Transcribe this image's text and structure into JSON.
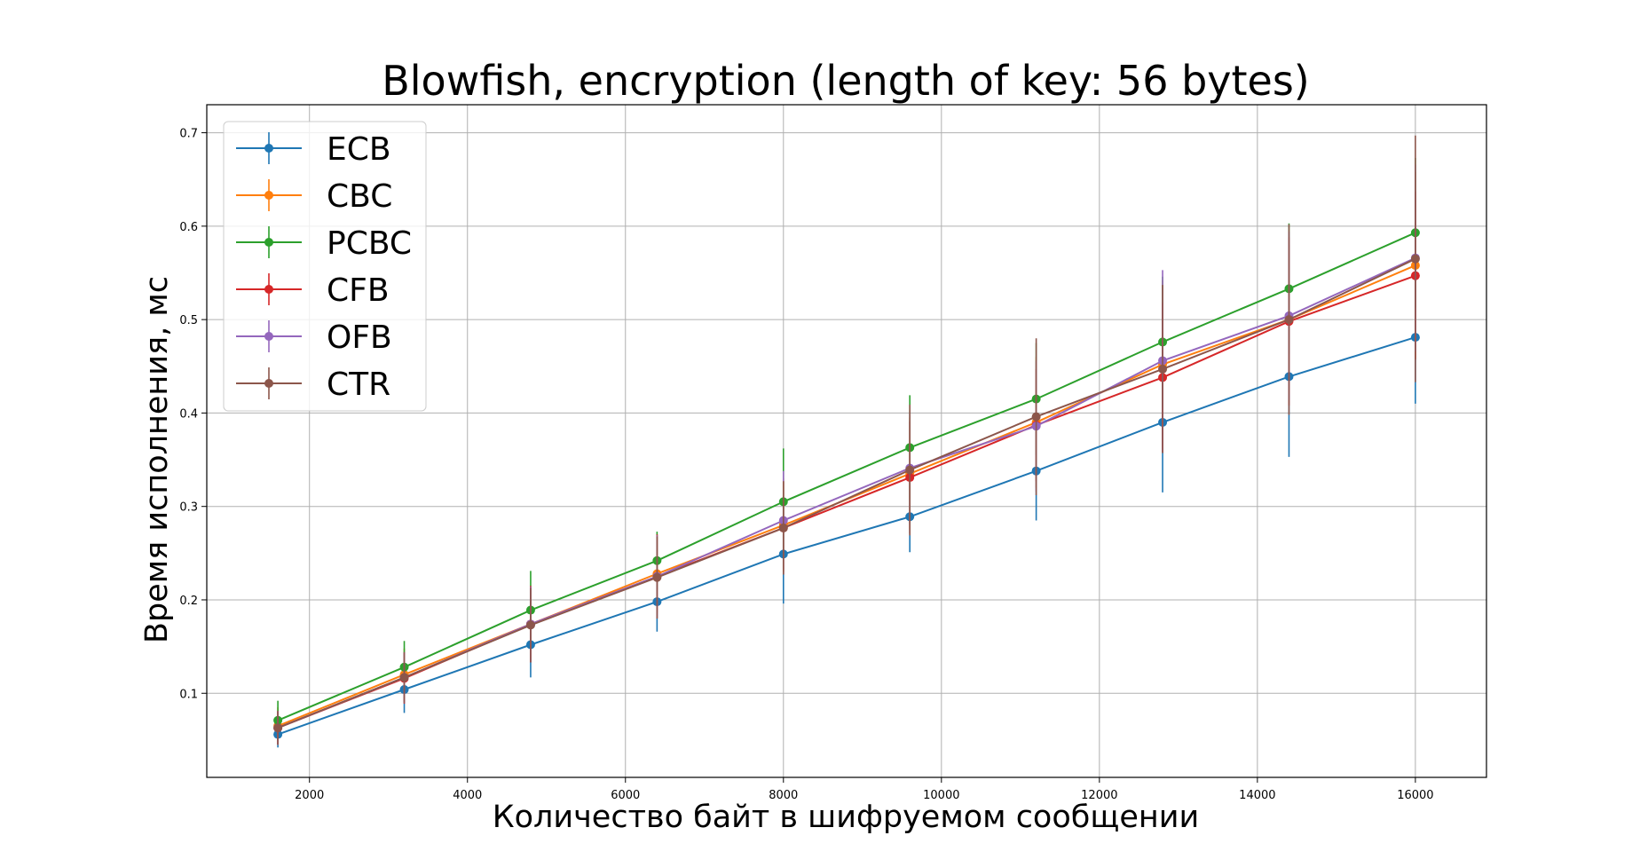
{
  "chart_data": {
    "type": "line",
    "title": "Blowfish, encryption (length of key: 56 bytes)",
    "xlabel": "Количество байт в шифруемом сообщении",
    "ylabel": "Время исполнения, мс",
    "xlim": [
      700,
      16900
    ],
    "ylim": [
      0.01,
      0.73
    ],
    "xticks": [
      2000,
      4000,
      6000,
      8000,
      10000,
      12000,
      14000,
      16000
    ],
    "yticks": [
      0.1,
      0.2,
      0.3,
      0.4,
      0.5,
      0.6,
      0.7
    ],
    "grid": true,
    "legend_position": "top-left",
    "error_bars": true,
    "x": [
      1600,
      3200,
      4800,
      6400,
      8000,
      9600,
      11200,
      12800,
      14400,
      16000
    ],
    "series": [
      {
        "name": "ECB",
        "color": "#1f77b4",
        "values": [
          0.056,
          0.104,
          0.152,
          0.198,
          0.249,
          0.289,
          0.338,
          0.39,
          0.439,
          0.481
        ],
        "errors": [
          0.014,
          0.025,
          0.035,
          0.032,
          0.053,
          0.038,
          0.053,
          0.075,
          0.086,
          0.071
        ]
      },
      {
        "name": "CBC",
        "color": "#ff7f0e",
        "values": [
          0.065,
          0.12,
          0.174,
          0.228,
          0.28,
          0.335,
          0.39,
          0.452,
          0.5,
          0.558
        ],
        "errors": [
          0.02,
          0.028,
          0.036,
          0.042,
          0.05,
          0.06,
          0.07,
          0.09,
          0.08,
          0.1
        ]
      },
      {
        "name": "PCBC",
        "color": "#2ca02c",
        "values": [
          0.071,
          0.128,
          0.189,
          0.242,
          0.305,
          0.363,
          0.415,
          0.476,
          0.533,
          0.593
        ],
        "errors": [
          0.021,
          0.028,
          0.042,
          0.031,
          0.057,
          0.056,
          0.06,
          0.07,
          0.07,
          0.08
        ]
      },
      {
        "name": "CFB",
        "color": "#d62728",
        "values": [
          0.063,
          0.116,
          0.174,
          0.225,
          0.277,
          0.331,
          0.387,
          0.438,
          0.498,
          0.547
        ],
        "errors": [
          0.018,
          0.027,
          0.041,
          0.045,
          0.05,
          0.06,
          0.06,
          0.08,
          0.09,
          0.09
        ]
      },
      {
        "name": "OFB",
        "color": "#9467bd",
        "values": [
          0.063,
          0.117,
          0.174,
          0.225,
          0.285,
          0.341,
          0.386,
          0.456,
          0.504,
          0.566
        ],
        "errors": [
          0.018,
          0.027,
          0.04,
          0.044,
          0.053,
          0.06,
          0.07,
          0.097,
          0.09,
          0.1
        ]
      },
      {
        "name": "CTR",
        "color": "#8c564b",
        "values": [
          0.063,
          0.117,
          0.173,
          0.224,
          0.277,
          0.339,
          0.396,
          0.447,
          0.5,
          0.565
        ],
        "errors": [
          0.018,
          0.027,
          0.04,
          0.044,
          0.05,
          0.07,
          0.084,
          0.09,
          0.102,
          0.132
        ]
      }
    ]
  }
}
